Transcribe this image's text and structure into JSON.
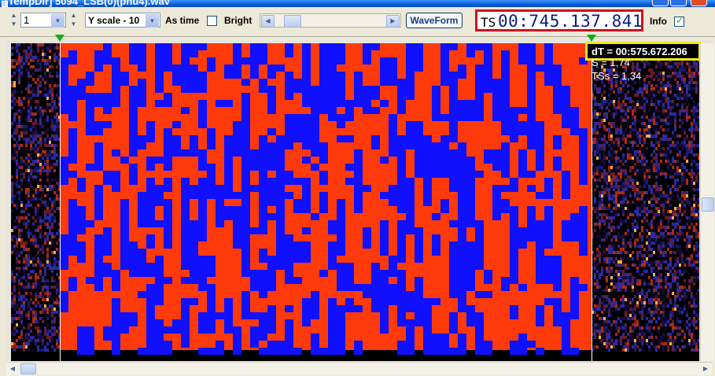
{
  "window": {
    "title": "[TempDir] 5094_LSB(0)(phu4).wav",
    "accent": "#0a5fd8"
  },
  "toolbar": {
    "zoom_value": "1",
    "yscale_value": "Y scale - 10",
    "as_time_label": "As time",
    "bright_label": "Bright",
    "bright_checked": false,
    "waveform_label": "WaveForm",
    "ts_prefix": "TS",
    "ts_value": "00:745.137.841",
    "info_label": "Info",
    "info_checked": true
  },
  "overlay": {
    "dt": "dT = 00:575.672.206",
    "s": "S = 1,74",
    "tss": "TSs = 1,34"
  },
  "colors": {
    "signal_high": "#ff3a0a",
    "signal_low": "#1010ff",
    "noise_bg": "#000000",
    "ts_border": "#d4101a",
    "dt_border": "#f2ea10",
    "marker": "#10b010"
  },
  "icons": {
    "spin_up": "up-arrow-icon",
    "spin_down": "down-arrow-icon",
    "combo_arrow": "chevron-down-icon",
    "scroll_left": "left-arrow-icon",
    "scroll_right": "right-arrow-icon",
    "marker": "triangle-marker-icon"
  }
}
